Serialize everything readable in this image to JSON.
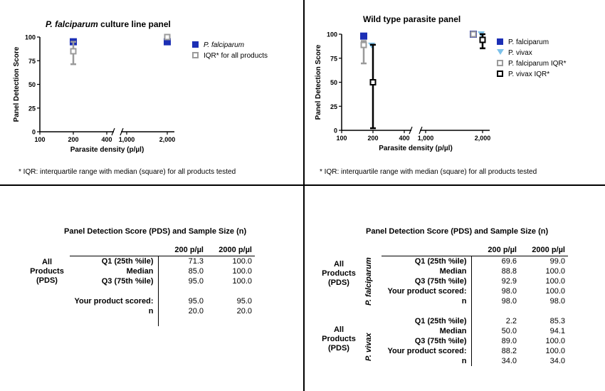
{
  "colors": {
    "pf": "#1c2fb5",
    "pv": "#7ec2ea",
    "iqr_gray": "#9b9b9b",
    "iqr_black": "#000000"
  },
  "chart_data": [
    {
      "type": "scatter",
      "title_italic": "P. falciparum",
      "title_rest": " culture line panel",
      "xlabel": "Parasite density (p/µl)",
      "ylabel": "Panel Detection Score",
      "ylim": [
        0,
        100
      ],
      "yticks": [
        "0",
        "25",
        "50",
        "75",
        "100"
      ],
      "xticks": [
        "100",
        "200",
        "400",
        "1,000",
        "2,000"
      ],
      "x_scale": "log, broken axis",
      "legend_position": "right",
      "series": [
        {
          "name": "P. falciparum",
          "marker": "filled-square",
          "points": [
            {
              "x": 200,
              "y": 95
            },
            {
              "x": 2000,
              "y": 95
            }
          ]
        },
        {
          "name": "IQR* for all products",
          "marker": "open-square-with-whiskers",
          "points": [
            {
              "x": 200,
              "q1": 71.3,
              "median": 85.0,
              "q3": 95.0
            },
            {
              "x": 2000,
              "q1": 100.0,
              "median": 100.0,
              "q3": 100.0
            }
          ]
        }
      ],
      "footnote": "* IQR: interquartile range with median (square) for all products tested"
    },
    {
      "type": "scatter",
      "title": "Wild type parasite panel",
      "xlabel": "Parasite density (p/µl)",
      "ylabel": "Panel Detection Score",
      "ylim": [
        0,
        100
      ],
      "yticks": [
        "0",
        "25",
        "50",
        "75",
        "100"
      ],
      "xticks": [
        "100",
        "200",
        "400",
        "1,000",
        "2,000"
      ],
      "x_scale": "log, broken axis",
      "legend_position": "right",
      "series": [
        {
          "name": "P. falciparum",
          "marker": "filled-square",
          "points": [
            {
              "x": 200,
              "y": 98
            },
            {
              "x": 2000,
              "y": 100
            }
          ]
        },
        {
          "name": "P. vivax",
          "marker": "triangle-down",
          "points": [
            {
              "x": 200,
              "y": 88.2
            },
            {
              "x": 2000,
              "y": 100
            }
          ]
        },
        {
          "name": "P. falciparum IQR*",
          "marker": "open-square-gray",
          "points": [
            {
              "x": 200,
              "q1": 69.6,
              "median": 88.8,
              "q3": 92.9
            },
            {
              "x": 2000,
              "q1": 99.0,
              "median": 100.0,
              "q3": 100.0
            }
          ]
        },
        {
          "name": "P. vivax IQR*",
          "marker": "open-square-black",
          "points": [
            {
              "x": 200,
              "q1": 2.2,
              "median": 50.0,
              "q3": 89.0
            },
            {
              "x": 2000,
              "q1": 85.3,
              "median": 94.1,
              "q3": 100.0
            }
          ]
        }
      ],
      "footnote": "* IQR: interquartile range with median (square) for all products tested"
    },
    {
      "type": "table",
      "title": "Panel Detection Score (PDS) and Sample Size (n)",
      "group_label": [
        "All",
        "Products",
        "(PDS)"
      ],
      "columns": [
        "200 p/µl",
        "2000 p/µl"
      ],
      "rows": [
        {
          "label": "Q1 (25th %ile)",
          "values": [
            "71.3",
            "100.0"
          ]
        },
        {
          "label": "Median",
          "values": [
            "85.0",
            "100.0"
          ]
        },
        {
          "label": "Q3 (75th %ile)",
          "values": [
            "95.0",
            "100.0"
          ]
        },
        {
          "label": "",
          "values": [
            "",
            ""
          ]
        },
        {
          "label": "Your product scored:",
          "values": [
            "95.0",
            "95.0"
          ]
        },
        {
          "label": "n",
          "values": [
            "20.0",
            "20.0"
          ]
        }
      ]
    },
    {
      "type": "table",
      "title": "Panel Detection Score (PDS) and Sample Size (n)",
      "columns": [
        "200 p/µl",
        "2000 p/µl"
      ],
      "groups": [
        {
          "label": [
            "All",
            "Products",
            "(PDS)"
          ],
          "species": "P. falciparum",
          "rows": [
            {
              "label": "Q1 (25th %ile)",
              "values": [
                "69.6",
                "99.0"
              ]
            },
            {
              "label": "Median",
              "values": [
                "88.8",
                "100.0"
              ]
            },
            {
              "label": "Q3 (75th %ile)",
              "values": [
                "92.9",
                "100.0"
              ]
            },
            {
              "label": "Your product scored:",
              "values": [
                "98.0",
                "100.0"
              ]
            },
            {
              "label": "n",
              "values": [
                "98.0",
                "98.0"
              ]
            }
          ]
        },
        {
          "label": [
            "All",
            "Products",
            "(PDS)"
          ],
          "species": "P. vivax",
          "rows": [
            {
              "label": "Q1 (25th %ile)",
              "values": [
                "2.2",
                "85.3"
              ]
            },
            {
              "label": "Median",
              "values": [
                "50.0",
                "94.1"
              ]
            },
            {
              "label": "Q3 (75th %ile)",
              "values": [
                "89.0",
                "100.0"
              ]
            },
            {
              "label": "Your product scored:",
              "values": [
                "88.2",
                "100.0"
              ]
            },
            {
              "label": "n",
              "values": [
                "34.0",
                "34.0"
              ]
            }
          ]
        }
      ]
    }
  ]
}
